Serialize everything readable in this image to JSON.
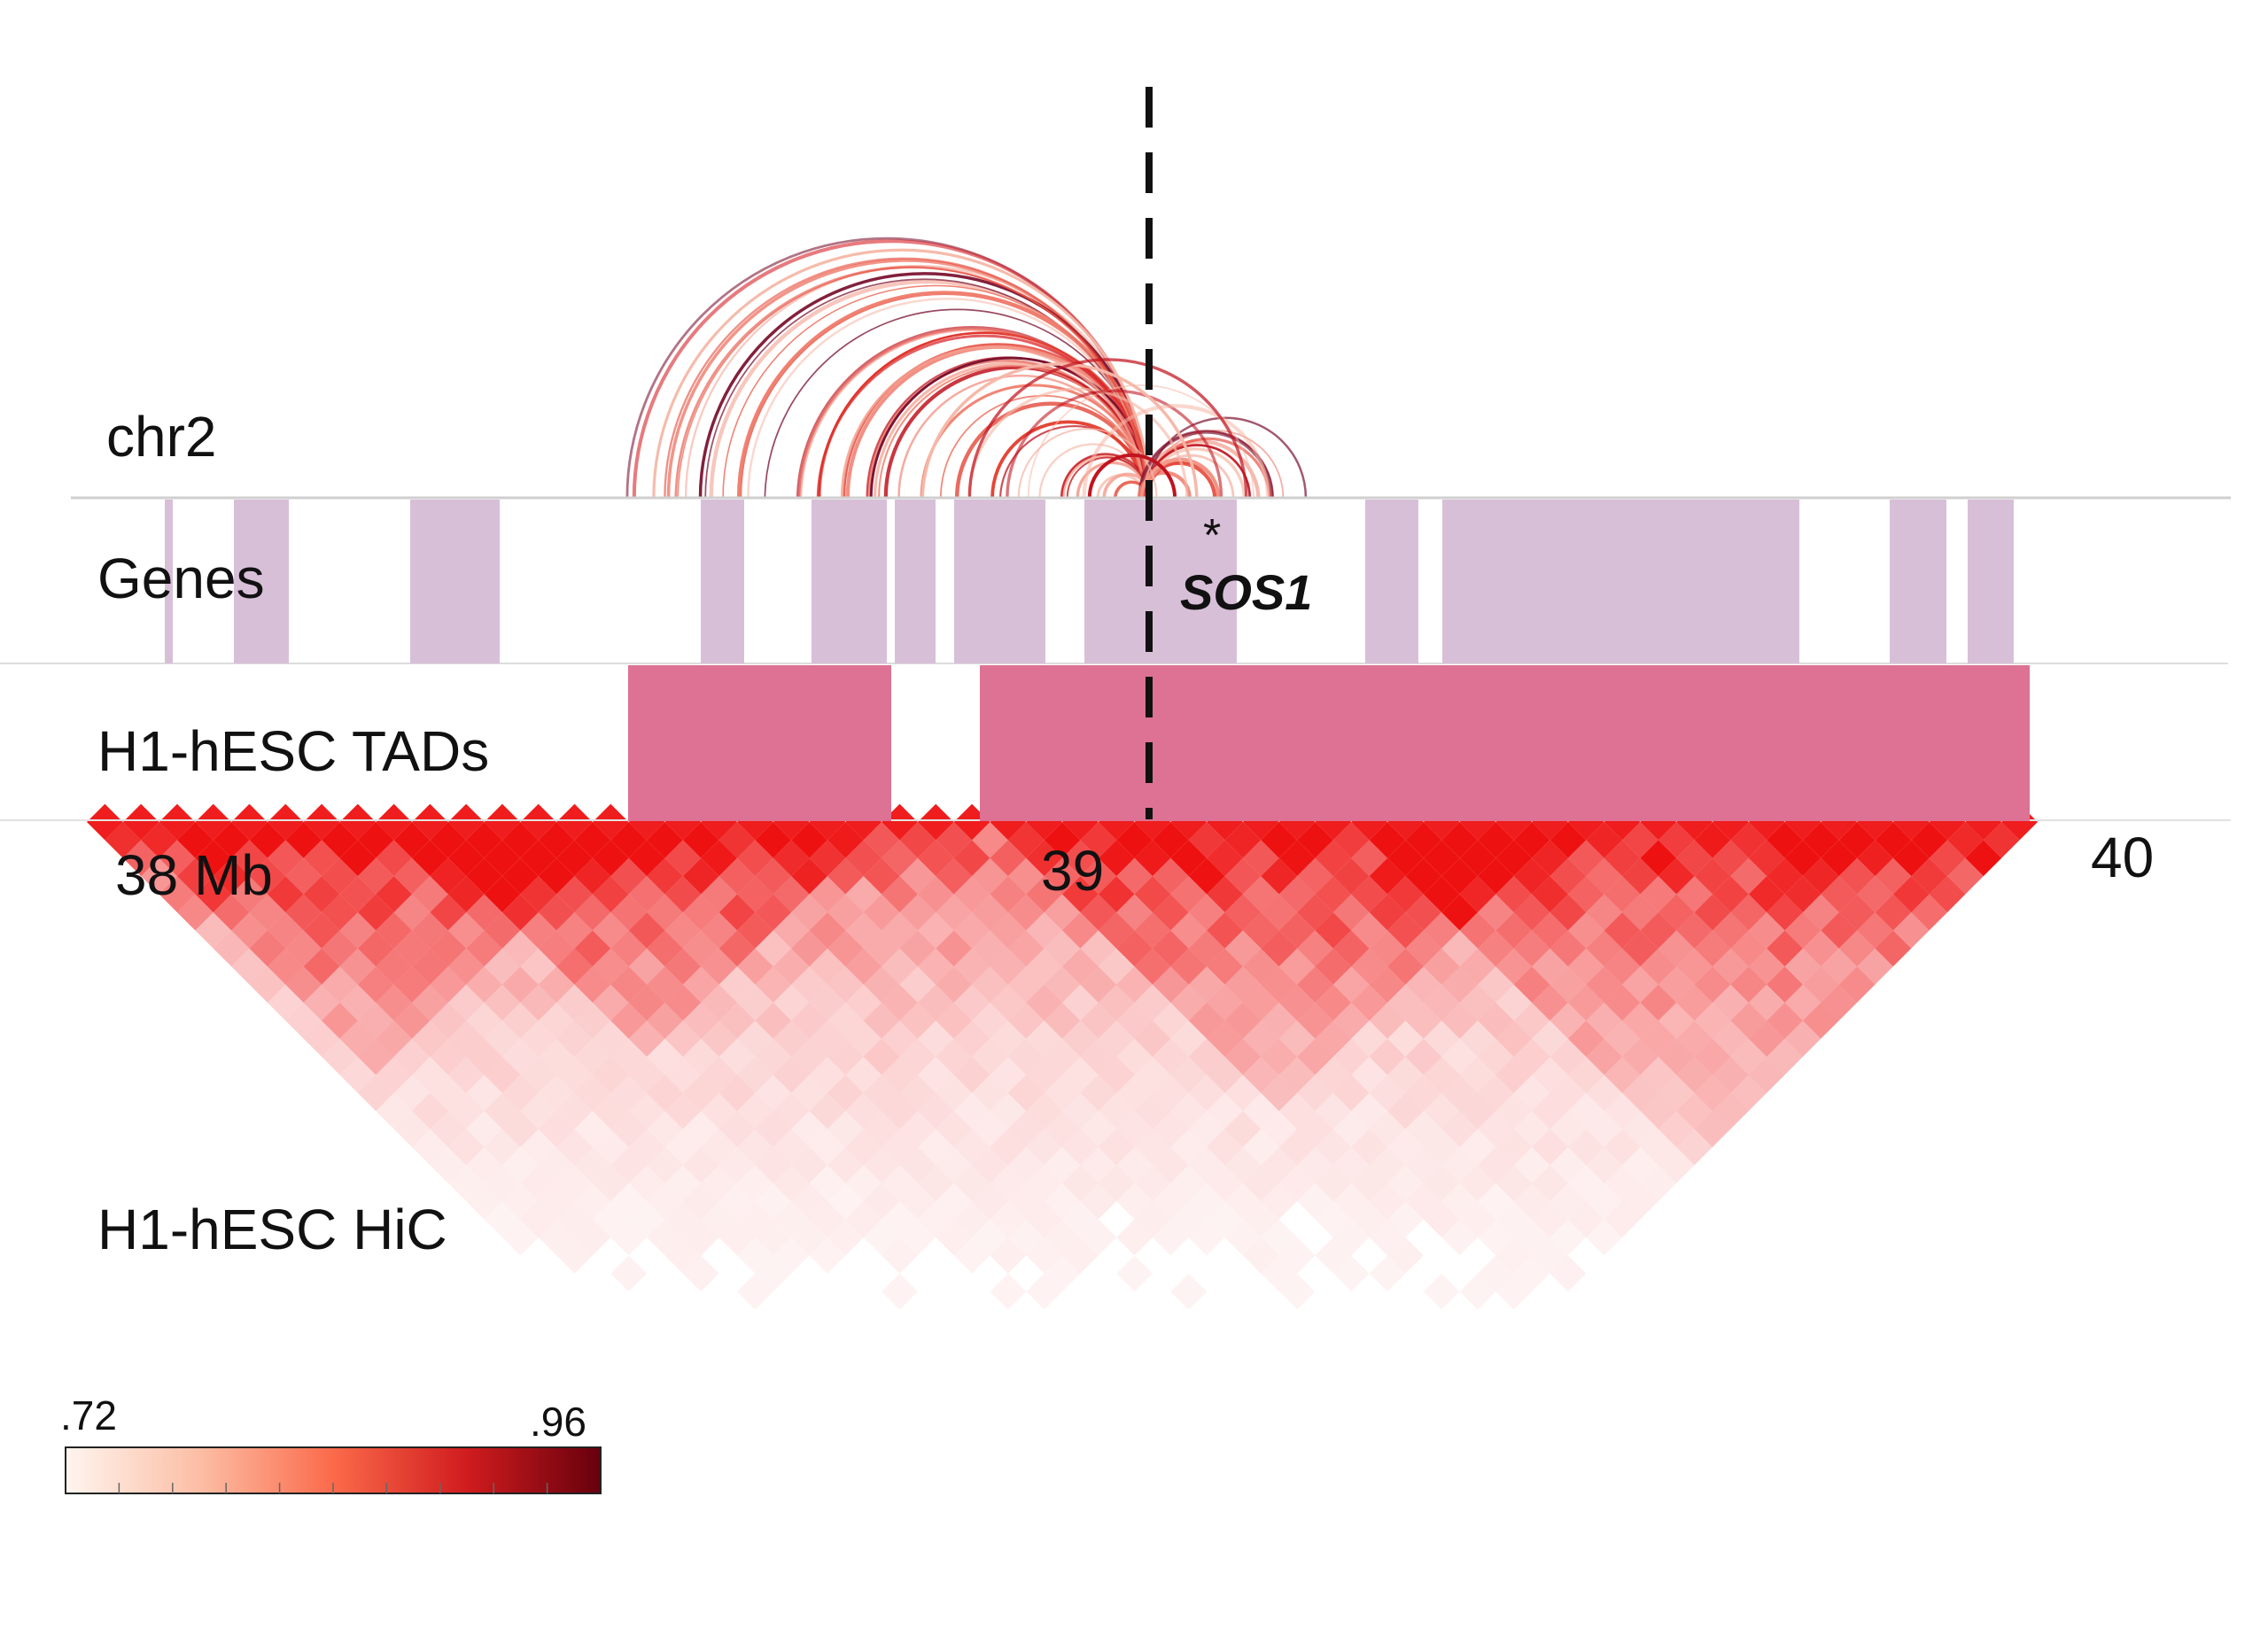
{
  "labels": {
    "chromosome": "chr2",
    "genes_track": "Genes",
    "tads_track": "H1-hESC TADs",
    "hic_track": "H1-hESC HiC",
    "gene_star": "*",
    "gene_name": "SOS1"
  },
  "axis": {
    "ticks": [
      {
        "label": "38 Mb",
        "value": 38
      },
      {
        "label": "39",
        "value": 39
      },
      {
        "label": "40",
        "value": 40
      }
    ]
  },
  "colorbar": {
    "min_label": ".72",
    "max_label": ".96",
    "min": 0.72,
    "max": 0.96
  },
  "colors": {
    "gene_fill": "#d8bfd8",
    "tad_fill": "#dd7295",
    "marker_line": "#111111",
    "hic_hot": "#ee1111"
  }
}
